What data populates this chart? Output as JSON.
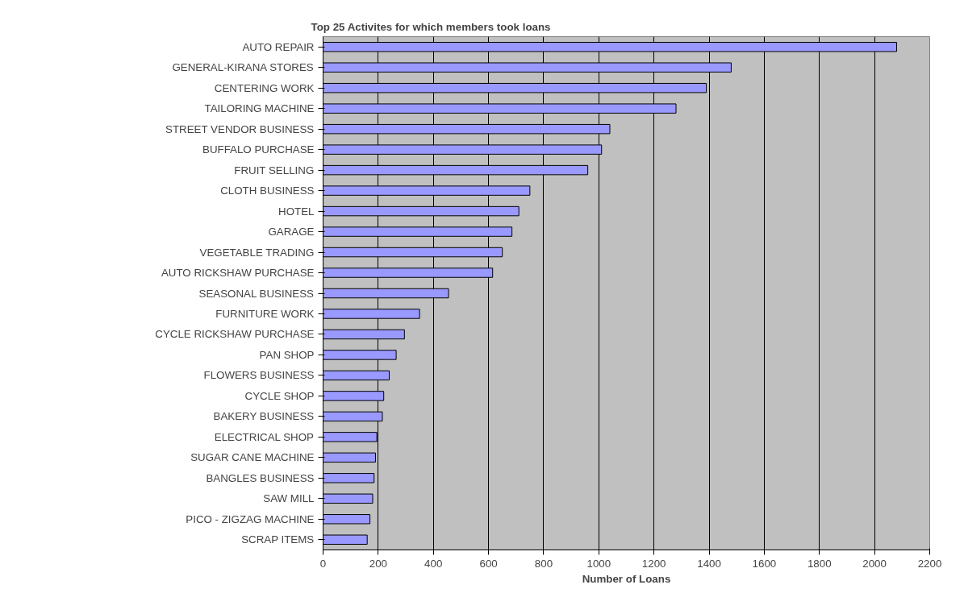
{
  "chart_data": {
    "type": "bar",
    "orientation": "horizontal",
    "title": "Top 25 Activites for which members took loans",
    "xlabel": "Number of Loans",
    "categories": [
      "AUTO REPAIR",
      "GENERAL-KIRANA STORES",
      "CENTERING WORK",
      "TAILORING MACHINE",
      "STREET VENDOR BUSINESS",
      "BUFFALO PURCHASE",
      "FRUIT SELLING",
      "CLOTH BUSINESS",
      "HOTEL",
      "GARAGE",
      "VEGETABLE TRADING",
      "AUTO RICKSHAW PURCHASE",
      "SEASONAL BUSINESS",
      "FURNITURE WORK",
      "CYCLE RICKSHAW PURCHASE",
      "PAN SHOP",
      "FLOWERS BUSINESS",
      "CYCLE SHOP",
      "BAKERY BUSINESS",
      "ELECTRICAL SHOP",
      "SUGAR CANE MACHINE",
      "BANGLES BUSINESS",
      "SAW MILL",
      "PICO - ZIGZAG MACHINE",
      "SCRAP ITEMS"
    ],
    "values": [
      2080,
      1480,
      1390,
      1280,
      1040,
      1010,
      960,
      750,
      710,
      685,
      650,
      615,
      455,
      350,
      295,
      265,
      240,
      220,
      215,
      195,
      190,
      185,
      180,
      170,
      160
    ],
    "color": "#9999ff",
    "xlim": [
      0,
      2200
    ],
    "xticks": [
      0,
      200,
      400,
      600,
      800,
      1000,
      1200,
      1400,
      1600,
      1800,
      2000,
      2200
    ],
    "grid": "x"
  }
}
